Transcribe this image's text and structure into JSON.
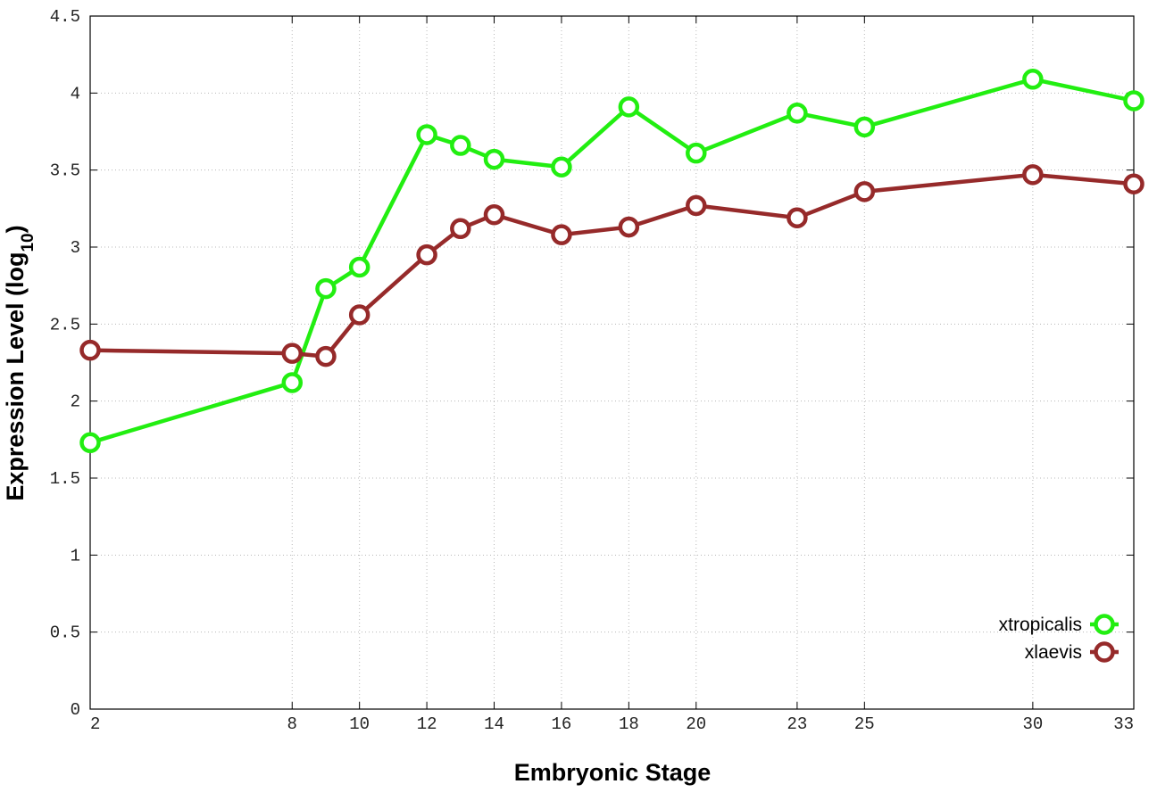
{
  "chart_data": {
    "type": "line",
    "xlabel": "Embryonic Stage",
    "ylabel_main": "Expression Level (log",
    "ylabel_sub": "10",
    "ylabel_close": ")",
    "xlim": [
      2,
      33
    ],
    "ylim": [
      0,
      4.5
    ],
    "x_ticks": [
      2,
      8,
      10,
      12,
      14,
      16,
      18,
      20,
      23,
      25,
      30,
      33
    ],
    "y_ticks": [
      "0",
      "0.5",
      "1",
      "1.5",
      "2",
      "2.5",
      "3",
      "3.5",
      "4",
      "4.5"
    ],
    "y_tick_values": [
      0,
      0.5,
      1,
      1.5,
      2,
      2.5,
      3,
      3.5,
      4,
      4.5
    ],
    "x": [
      2,
      8,
      9,
      10,
      12,
      13,
      14,
      16,
      18,
      20,
      23,
      25,
      30,
      33
    ],
    "grid": true,
    "legend_position": "bottom-right",
    "series": [
      {
        "name": "xtropicalis",
        "color": "#22ee11",
        "values": [
          1.73,
          2.12,
          2.73,
          2.87,
          3.73,
          3.66,
          3.57,
          3.52,
          3.91,
          3.61,
          3.87,
          3.78,
          4.09,
          3.95
        ]
      },
      {
        "name": "xlaevis",
        "color": "#962a2a",
        "values": [
          2.33,
          2.31,
          2.29,
          2.56,
          2.95,
          3.12,
          3.21,
          3.08,
          3.13,
          3.27,
          3.19,
          3.36,
          3.47,
          3.41
        ]
      }
    ]
  }
}
